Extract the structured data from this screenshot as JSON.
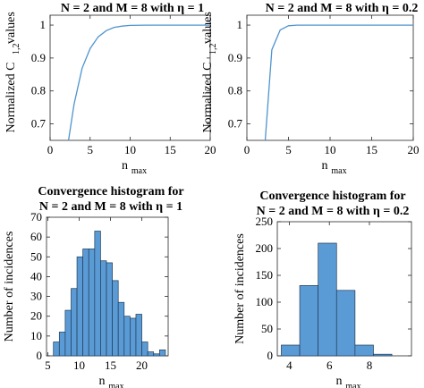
{
  "chart_data": [
    {
      "type": "line",
      "title": "N = 2 and M = 8 with η = 1",
      "xlabel": "n",
      "xlabel_sub": "max",
      "ylabel": "Normalized C",
      "ylabel_sub": "1,2",
      "ylabel_tail": " values",
      "xlim": [
        0,
        20
      ],
      "ylim": [
        0.65,
        1.03
      ],
      "xticks": [
        0,
        5,
        10,
        15,
        20
      ],
      "yticks": [
        0.7,
        0.8,
        0.9,
        1
      ],
      "ytick_labels": [
        "0.7",
        "0.8",
        "0.9",
        "1"
      ],
      "color": "#4f94cd",
      "x": [
        2.3,
        3,
        4,
        5,
        6,
        7,
        8,
        9,
        10,
        12,
        14,
        16,
        18,
        20
      ],
      "y": [
        0.65,
        0.76,
        0.869,
        0.929,
        0.964,
        0.983,
        0.993,
        0.997,
        0.999,
        1.0,
        1.0,
        1.0,
        1.0,
        1.0
      ]
    },
    {
      "type": "line",
      "title": "N = 2 and M = 8 with η = 0.2",
      "xlabel": "n",
      "xlabel_sub": "max",
      "ylabel": "Normalized C",
      "ylabel_sub": "1,2",
      "ylabel_tail": " values",
      "xlim": [
        0,
        20
      ],
      "ylim": [
        0.65,
        1.03
      ],
      "xticks": [
        0,
        5,
        10,
        15,
        20
      ],
      "yticks": [
        0.7,
        0.8,
        0.9,
        1
      ],
      "ytick_labels": [
        "0.7",
        "0.8",
        "0.9",
        "1"
      ],
      "color": "#4f94cd",
      "x": [
        2.2,
        3,
        4,
        5,
        6,
        8,
        10,
        15,
        20
      ],
      "y": [
        0.65,
        0.925,
        0.985,
        0.998,
        1.0,
        1.0,
        1.0,
        1.0,
        1.0
      ]
    },
    {
      "type": "bar",
      "title_line1": "Convergence histogram for",
      "title_line2": "N = 2 and M = 8 with η = 1",
      "xlabel": "n",
      "xlabel_sub": "max",
      "ylabel": "Number of incidences",
      "xlim": [
        4.8,
        24.2
      ],
      "ylim": [
        0,
        70
      ],
      "xticks": [
        5,
        10,
        15,
        20
      ],
      "yticks": [
        0,
        10,
        20,
        30,
        40,
        50,
        60,
        70
      ],
      "bin_width": 0.94,
      "bin_edges_start": 5.9,
      "values": [
        7,
        12,
        23,
        34,
        50,
        54,
        54,
        63,
        48,
        47,
        38,
        27,
        20,
        19,
        21,
        7,
        2,
        1,
        3
      ],
      "fill": "#5b9bd5",
      "edge": "#1f3b57"
    },
    {
      "type": "bar",
      "title_line1": "Convergence histogram for",
      "title_line2": "N = 2 and M = 8 with η = 0.2",
      "xlabel": "n",
      "xlabel_sub": "max",
      "ylabel": "Number of incidences",
      "xlim": [
        3.4,
        10.1
      ],
      "ylim": [
        0,
        250
      ],
      "xticks": [
        4,
        6,
        8
      ],
      "yticks": [
        0,
        50,
        100,
        150,
        200,
        250
      ],
      "bin_width": 0.92,
      "bin_edges_start": 3.6,
      "values": [
        20,
        131,
        210,
        122,
        20,
        3
      ],
      "fill": "#5b9bd5",
      "edge": "#1f3b57"
    }
  ]
}
